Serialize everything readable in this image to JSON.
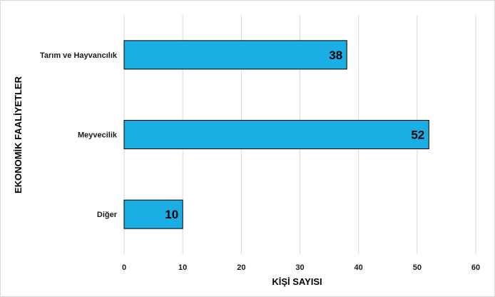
{
  "chart_data": {
    "type": "bar",
    "orientation": "horizontal",
    "categories": [
      "Tarım ve Hayvancılık",
      "Meyvecilik",
      "Diğer"
    ],
    "values": [
      38,
      52,
      10
    ],
    "data_labels": [
      "38",
      "52",
      "10"
    ],
    "xlabel": "KİŞİ SAYISI",
    "ylabel": "EKONOMİK FAALİYETLER",
    "xlim": [
      0,
      60
    ],
    "xticks": [
      "0",
      "10",
      "20",
      "30",
      "40",
      "50",
      "60"
    ],
    "grid": "vertical",
    "legend": "none",
    "bar_color": "#1AAEE5",
    "bar_border_color": "#000000"
  }
}
